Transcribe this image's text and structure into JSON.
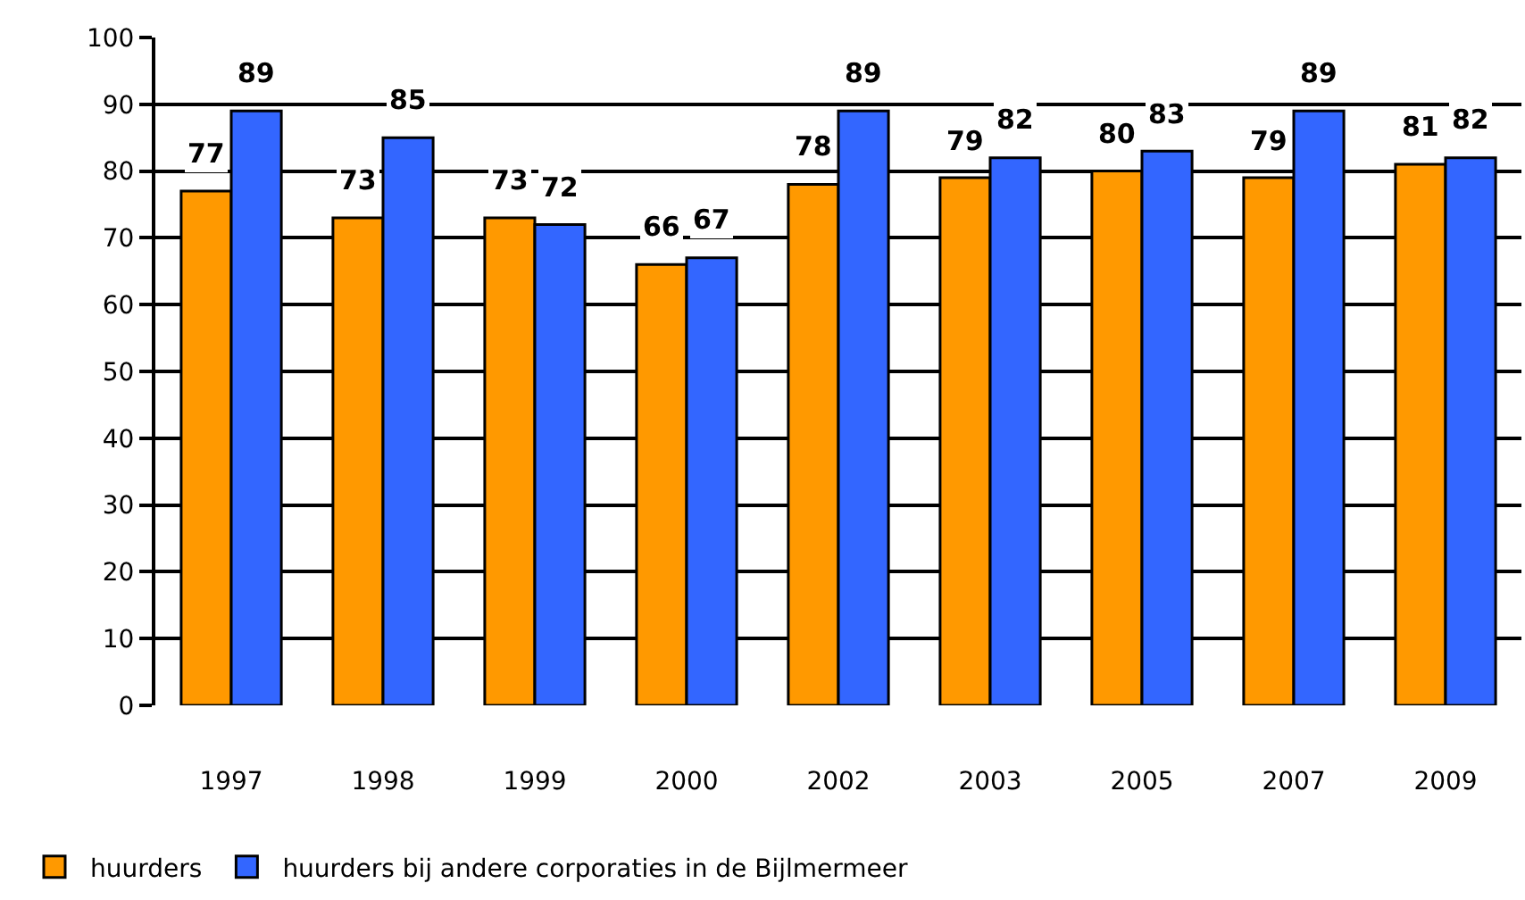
{
  "chart_data": {
    "type": "bar",
    "categories": [
      "1997",
      "1998",
      "1999",
      "2000",
      "2002",
      "2003",
      "2005",
      "2007",
      "2009"
    ],
    "series": [
      {
        "name": "huurders",
        "color": "#ff9900",
        "values": [
          77,
          73,
          73,
          66,
          78,
          79,
          80,
          79,
          81
        ]
      },
      {
        "name": "huurders bij andere corporaties in de Bijlmermeer",
        "color": "#3366ff",
        "values": [
          89,
          85,
          72,
          67,
          89,
          82,
          83,
          89,
          82
        ]
      }
    ],
    "ylim": [
      0,
      100
    ],
    "yticks": [
      0,
      10,
      20,
      30,
      40,
      50,
      60,
      70,
      80,
      90,
      100
    ],
    "grid": "y",
    "legend": "bottom left",
    "data_labels": true
  }
}
